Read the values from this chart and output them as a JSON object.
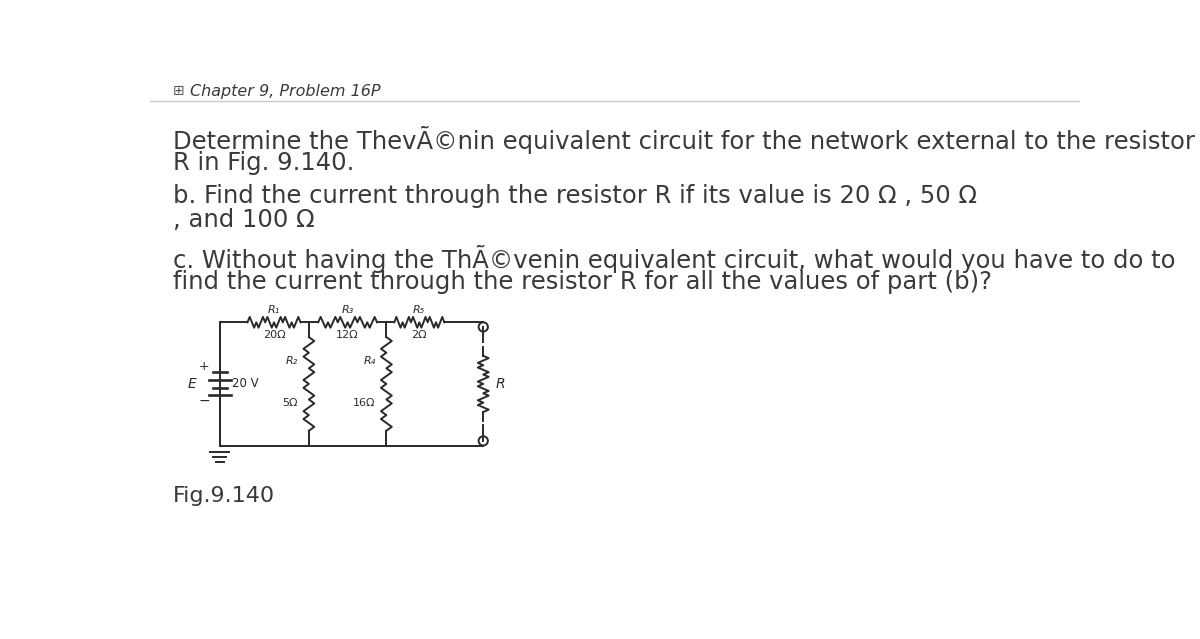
{
  "bg_color": "#ffffff",
  "text_color": "#3a3a3a",
  "separator_color": "#c8c8d0",
  "title": "Chapter 9, Problem 16P",
  "line1a": "Determine the ThevÃ©nin equivalent circuit for the network external to the resistor",
  "line1b": "R in Fig. 9.140.",
  "line2a": "b. Find the current through the resistor R if its value is 20 Ω , 50 Ω",
  "line2b": ", and 100 Ω",
  "line3a": "c. Without having the ThÃ©venin equivalent circuit, what would you have to do to",
  "line3b": "find the current through the resistor R for all the values of part (b)?",
  "fig_caption": "Fig.9.140",
  "circuit": {
    "E_label": "E",
    "E_value": "20 V",
    "R1_label": "R₁",
    "R1_value": "20Ω",
    "R2_label": "R₂",
    "R2_value": "5Ω",
    "R3_label": "R₃",
    "R3_value": "12Ω",
    "R4_label": "R₄",
    "R4_value": "16Ω",
    "R5_label": "R₅",
    "R5_value": "2Ω",
    "R_label": "R"
  }
}
